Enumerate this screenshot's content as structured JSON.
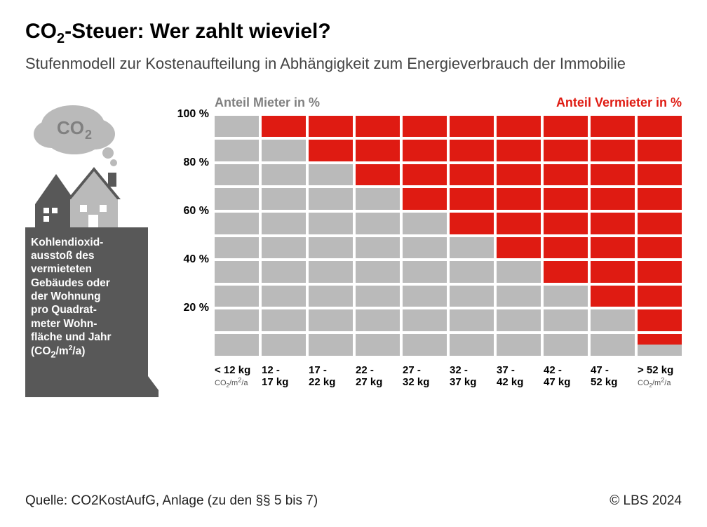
{
  "title_pre": "CO",
  "title_sub": "2",
  "title_post": "-Steuer: Wer zahlt wieviel?",
  "subtitle": "Stufenmodell zur Kostenaufteilung in Abhängigkeit zum Energieverbrauch der Immobilie",
  "co2_cloud_label": "CO",
  "co2_cloud_sub": "2",
  "legend_mieter": "Anteil Mieter in %",
  "legend_vermieter": "Anteil Vermieter in %",
  "pedestal_text_html": "Kohlendioxid-<br>ausstoß des<br>vermieteten<br>Gebäudes oder<br>der Wohnung<br>pro Quadrat-<br>meter Wohn-<br>fläche und Jahr<br>(CO<sub>2</sub>/m<sup>2</sup>/a)",
  "chart": {
    "type": "stacked-bar-block",
    "y_ticks": [
      "100 %",
      "80 %",
      "60 %",
      "40 %",
      "20 %"
    ],
    "y_positions_pct": [
      0,
      20,
      40,
      60,
      80
    ],
    "n_rows": 10,
    "mieter_color": "#bababa",
    "vermieter_color": "#df1b12",
    "columns": [
      {
        "label_l1": "< 12 kg",
        "label_l2": "",
        "sub": "CO₂/m²/a",
        "mieter_pct": 100,
        "vermieter_pct": 0
      },
      {
        "label_l1": "12 -",
        "label_l2": "17 kg",
        "sub": "",
        "mieter_pct": 90,
        "vermieter_pct": 10
      },
      {
        "label_l1": "17 -",
        "label_l2": "22 kg",
        "sub": "",
        "mieter_pct": 80,
        "vermieter_pct": 20
      },
      {
        "label_l1": "22 -",
        "label_l2": "27 kg",
        "sub": "",
        "mieter_pct": 70,
        "vermieter_pct": 30
      },
      {
        "label_l1": "27 -",
        "label_l2": "32 kg",
        "sub": "",
        "mieter_pct": 60,
        "vermieter_pct": 40
      },
      {
        "label_l1": "32 -",
        "label_l2": "37 kg",
        "sub": "",
        "mieter_pct": 50,
        "vermieter_pct": 50
      },
      {
        "label_l1": "37 -",
        "label_l2": "42 kg",
        "sub": "",
        "mieter_pct": 40,
        "vermieter_pct": 60
      },
      {
        "label_l1": "42 -",
        "label_l2": "47 kg",
        "sub": "",
        "mieter_pct": 30,
        "vermieter_pct": 70
      },
      {
        "label_l1": "47 -",
        "label_l2": "52 kg",
        "sub": "",
        "mieter_pct": 20,
        "vermieter_pct": 80
      },
      {
        "label_l1": "> 52 kg",
        "label_l2": "",
        "sub": "CO₂/m²/a",
        "mieter_pct": 5,
        "vermieter_pct": 95
      }
    ]
  },
  "source": "Quelle: CO2KostAufG, Anlage (zu den §§ 5 bis 7)",
  "copyright": "© LBS 2024",
  "colors": {
    "title": "#000000",
    "subtitle": "#444444",
    "mieter": "#bababa",
    "vermieter": "#df1b12",
    "house_dark": "#585858",
    "house_light": "#bababa",
    "cloud": "#bababa",
    "cloud_label": "#808080"
  }
}
